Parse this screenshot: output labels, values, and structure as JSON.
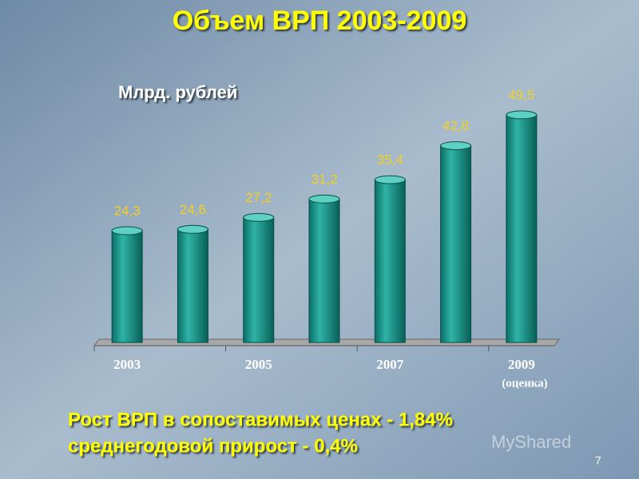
{
  "chart_data": {
    "type": "bar",
    "title": "Объем ВРП  2003-2009",
    "subtitle": "Млрд. рублей",
    "categories": [
      "2003",
      null,
      "2005",
      null,
      "2007",
      null,
      "2009"
    ],
    "category_note": "(оценка)",
    "values": [
      24.3,
      24.6,
      27.2,
      31.2,
      35.4,
      42.8,
      49.5
    ],
    "value_labels": [
      "24,3",
      "24,6",
      "27,2",
      "31,2",
      "35,4",
      "42,8",
      "49,5"
    ],
    "color": "#1ea597",
    "notes": [
      "Рост ВРП в сопоставимых ценах - 1,84%",
      "среднегодовой прирост - 0,4%"
    ]
  },
  "watermark": "MyShared",
  "slide_number": "7"
}
